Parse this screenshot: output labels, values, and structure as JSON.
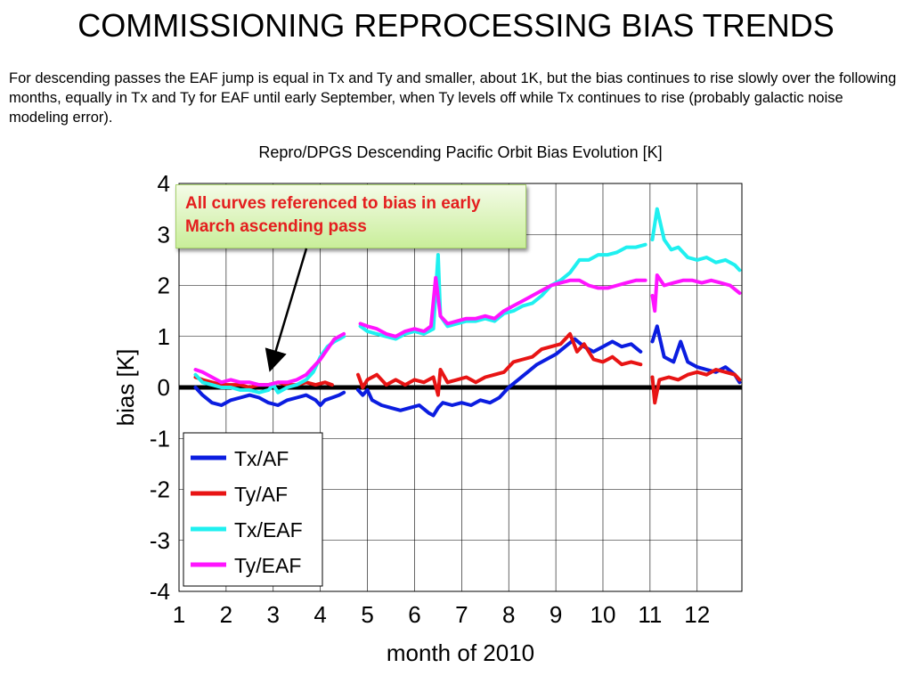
{
  "slide": {
    "title": "COMMISSIONING REPROCESSING BIAS TRENDS",
    "description": "For descending passes the EAF jump is equal in Tx and Ty and smaller, about 1K, but the bias continues to rise slowly over the following months, equally in Tx and Ty for EAF until early September, when Ty levels off while Tx continues to rise (probably galactic noise modeling error).",
    "callout": "All curves referenced to bias in early March ascending pass"
  },
  "chart_data": {
    "type": "line",
    "title": "Repro/DPGS Descending Pacific Orbit Bias Evolution [K]",
    "xlabel": "month of 2010",
    "ylabel": "bias [K]",
    "xlim": [
      1,
      12.95
    ],
    "ylim": [
      -4,
      4
    ],
    "xticks": [
      1,
      2,
      3,
      4,
      5,
      6,
      7,
      8,
      9,
      10,
      11,
      12
    ],
    "yticks": [
      -4,
      -3,
      -2,
      -1,
      0,
      1,
      2,
      3,
      4
    ],
    "grid": true,
    "legend_position": "bottom-left",
    "reference_line": {
      "y": 0,
      "color": "#000000"
    },
    "series": [
      {
        "name": "Tx/AF",
        "color": "#0b1de0",
        "segments": [
          [
            [
              1.35,
              0.0
            ],
            [
              1.5,
              -0.15
            ],
            [
              1.7,
              -0.3
            ],
            [
              1.9,
              -0.35
            ],
            [
              2.1,
              -0.25
            ],
            [
              2.3,
              -0.2
            ],
            [
              2.5,
              -0.15
            ],
            [
              2.7,
              -0.2
            ],
            [
              2.9,
              -0.3
            ],
            [
              3.1,
              -0.35
            ],
            [
              3.3,
              -0.25
            ],
            [
              3.5,
              -0.2
            ],
            [
              3.7,
              -0.15
            ],
            [
              3.9,
              -0.25
            ],
            [
              4.0,
              -0.35
            ],
            [
              4.1,
              -0.25
            ],
            [
              4.25,
              -0.2
            ],
            [
              4.4,
              -0.15
            ],
            [
              4.5,
              -0.1
            ]
          ],
          [
            [
              4.8,
              -0.05
            ],
            [
              4.9,
              -0.15
            ],
            [
              5.0,
              -0.05
            ],
            [
              5.1,
              -0.25
            ],
            [
              5.3,
              -0.35
            ],
            [
              5.5,
              -0.4
            ],
            [
              5.7,
              -0.45
            ],
            [
              5.9,
              -0.4
            ],
            [
              6.1,
              -0.35
            ],
            [
              6.3,
              -0.5
            ],
            [
              6.4,
              -0.55
            ],
            [
              6.5,
              -0.4
            ],
            [
              6.6,
              -0.3
            ],
            [
              6.8,
              -0.35
            ],
            [
              7.0,
              -0.3
            ],
            [
              7.2,
              -0.35
            ],
            [
              7.4,
              -0.25
            ],
            [
              7.6,
              -0.3
            ],
            [
              7.8,
              -0.2
            ],
            [
              8.0,
              0.0
            ],
            [
              8.2,
              0.15
            ],
            [
              8.4,
              0.3
            ],
            [
              8.6,
              0.45
            ],
            [
              8.8,
              0.55
            ],
            [
              9.0,
              0.65
            ],
            [
              9.2,
              0.8
            ],
            [
              9.4,
              0.95
            ],
            [
              9.6,
              0.8
            ],
            [
              9.8,
              0.7
            ],
            [
              10.0,
              0.8
            ],
            [
              10.2,
              0.9
            ],
            [
              10.4,
              0.8
            ],
            [
              10.6,
              0.85
            ],
            [
              10.8,
              0.7
            ]
          ],
          [
            [
              11.05,
              0.9
            ],
            [
              11.15,
              1.2
            ],
            [
              11.3,
              0.6
            ],
            [
              11.5,
              0.5
            ],
            [
              11.65,
              0.9
            ],
            [
              11.8,
              0.5
            ],
            [
              12.0,
              0.4
            ],
            [
              12.2,
              0.35
            ],
            [
              12.4,
              0.3
            ],
            [
              12.6,
              0.4
            ],
            [
              12.8,
              0.25
            ],
            [
              12.9,
              0.1
            ]
          ]
        ]
      },
      {
        "name": "Ty/AF",
        "color": "#e81414",
        "segments": [
          [
            [
              1.35,
              0.2
            ],
            [
              1.5,
              0.15
            ],
            [
              1.7,
              0.1
            ],
            [
              1.9,
              0.05
            ],
            [
              2.1,
              0.05
            ],
            [
              2.3,
              0.05
            ],
            [
              2.5,
              0.0
            ],
            [
              2.7,
              0.05
            ],
            [
              2.9,
              0.05
            ],
            [
              3.1,
              0.1
            ],
            [
              3.3,
              0.05
            ],
            [
              3.5,
              0.05
            ],
            [
              3.7,
              0.1
            ],
            [
              3.9,
              0.05
            ],
            [
              4.1,
              0.1
            ],
            [
              4.25,
              0.05
            ]
          ],
          [
            [
              4.8,
              0.25
            ],
            [
              4.9,
              0.0
            ],
            [
              5.0,
              0.15
            ],
            [
              5.2,
              0.25
            ],
            [
              5.4,
              0.05
            ],
            [
              5.6,
              0.15
            ],
            [
              5.8,
              0.05
            ],
            [
              6.0,
              0.15
            ],
            [
              6.2,
              0.1
            ],
            [
              6.4,
              0.2
            ],
            [
              6.5,
              -0.15
            ],
            [
              6.55,
              0.35
            ],
            [
              6.7,
              0.1
            ],
            [
              6.9,
              0.15
            ],
            [
              7.1,
              0.2
            ],
            [
              7.3,
              0.1
            ],
            [
              7.5,
              0.2
            ],
            [
              7.7,
              0.25
            ],
            [
              7.9,
              0.3
            ],
            [
              8.1,
              0.5
            ],
            [
              8.3,
              0.55
            ],
            [
              8.5,
              0.6
            ],
            [
              8.7,
              0.75
            ],
            [
              8.9,
              0.8
            ],
            [
              9.1,
              0.85
            ],
            [
              9.3,
              1.05
            ],
            [
              9.45,
              0.7
            ],
            [
              9.6,
              0.85
            ],
            [
              9.8,
              0.55
            ],
            [
              10.0,
              0.5
            ],
            [
              10.2,
              0.6
            ],
            [
              10.4,
              0.45
            ],
            [
              10.6,
              0.5
            ],
            [
              10.8,
              0.45
            ]
          ],
          [
            [
              11.05,
              0.2
            ],
            [
              11.1,
              -0.3
            ],
            [
              11.2,
              0.15
            ],
            [
              11.4,
              0.2
            ],
            [
              11.6,
              0.15
            ],
            [
              11.8,
              0.25
            ],
            [
              12.0,
              0.3
            ],
            [
              12.2,
              0.25
            ],
            [
              12.4,
              0.35
            ],
            [
              12.6,
              0.3
            ],
            [
              12.8,
              0.25
            ],
            [
              12.9,
              0.15
            ]
          ]
        ]
      },
      {
        "name": "Tx/EAF",
        "color": "#1ff0f0",
        "segments": [
          [
            [
              1.35,
              0.25
            ],
            [
              1.5,
              0.1
            ],
            [
              1.7,
              0.05
            ],
            [
              1.9,
              0.0
            ],
            [
              2.1,
              0.0
            ],
            [
              2.3,
              -0.05
            ],
            [
              2.5,
              -0.05
            ],
            [
              2.7,
              -0.1
            ],
            [
              2.9,
              -0.05
            ],
            [
              3.0,
              0.05
            ],
            [
              3.1,
              -0.1
            ],
            [
              3.3,
              0.0
            ],
            [
              3.5,
              0.05
            ],
            [
              3.7,
              0.15
            ],
            [
              3.85,
              0.3
            ],
            [
              4.0,
              0.6
            ],
            [
              4.15,
              0.8
            ],
            [
              4.3,
              0.9
            ],
            [
              4.5,
              1.0
            ]
          ],
          [
            [
              4.85,
              1.2
            ],
            [
              5.0,
              1.1
            ],
            [
              5.2,
              1.05
            ],
            [
              5.4,
              1.0
            ],
            [
              5.6,
              0.95
            ],
            [
              5.8,
              1.05
            ],
            [
              6.0,
              1.1
            ],
            [
              6.2,
              1.05
            ],
            [
              6.4,
              1.15
            ],
            [
              6.5,
              2.6
            ],
            [
              6.55,
              1.4
            ],
            [
              6.7,
              1.2
            ],
            [
              6.9,
              1.25
            ],
            [
              7.1,
              1.3
            ],
            [
              7.3,
              1.3
            ],
            [
              7.5,
              1.35
            ],
            [
              7.7,
              1.3
            ],
            [
              7.9,
              1.45
            ],
            [
              8.1,
              1.5
            ],
            [
              8.3,
              1.6
            ],
            [
              8.5,
              1.65
            ],
            [
              8.7,
              1.8
            ],
            [
              8.9,
              2.0
            ],
            [
              9.1,
              2.1
            ],
            [
              9.3,
              2.25
            ],
            [
              9.5,
              2.5
            ],
            [
              9.7,
              2.5
            ],
            [
              9.9,
              2.6
            ],
            [
              10.1,
              2.6
            ],
            [
              10.3,
              2.65
            ],
            [
              10.5,
              2.75
            ],
            [
              10.7,
              2.75
            ],
            [
              10.9,
              2.8
            ]
          ],
          [
            [
              11.05,
              2.9
            ],
            [
              11.15,
              3.5
            ],
            [
              11.3,
              2.9
            ],
            [
              11.45,
              2.7
            ],
            [
              11.6,
              2.75
            ],
            [
              11.8,
              2.55
            ],
            [
              12.0,
              2.5
            ],
            [
              12.2,
              2.55
            ],
            [
              12.4,
              2.45
            ],
            [
              12.6,
              2.5
            ],
            [
              12.8,
              2.4
            ],
            [
              12.9,
              2.3
            ]
          ]
        ]
      },
      {
        "name": "Ty/EAF",
        "color": "#ff14ff",
        "segments": [
          [
            [
              1.35,
              0.35
            ],
            [
              1.5,
              0.3
            ],
            [
              1.7,
              0.2
            ],
            [
              1.9,
              0.1
            ],
            [
              2.1,
              0.15
            ],
            [
              2.3,
              0.1
            ],
            [
              2.5,
              0.1
            ],
            [
              2.7,
              0.05
            ],
            [
              2.9,
              0.05
            ],
            [
              3.1,
              0.1
            ],
            [
              3.3,
              0.1
            ],
            [
              3.5,
              0.15
            ],
            [
              3.7,
              0.25
            ],
            [
              3.85,
              0.4
            ],
            [
              4.0,
              0.55
            ],
            [
              4.15,
              0.75
            ],
            [
              4.3,
              0.95
            ],
            [
              4.5,
              1.05
            ]
          ],
          [
            [
              4.85,
              1.25
            ],
            [
              5.0,
              1.2
            ],
            [
              5.2,
              1.15
            ],
            [
              5.4,
              1.05
            ],
            [
              5.6,
              1.0
            ],
            [
              5.8,
              1.1
            ],
            [
              6.0,
              1.15
            ],
            [
              6.2,
              1.1
            ],
            [
              6.35,
              1.2
            ],
            [
              6.45,
              2.15
            ],
            [
              6.55,
              1.4
            ],
            [
              6.7,
              1.25
            ],
            [
              6.9,
              1.3
            ],
            [
              7.1,
              1.35
            ],
            [
              7.3,
              1.35
            ],
            [
              7.5,
              1.4
            ],
            [
              7.7,
              1.35
            ],
            [
              7.9,
              1.5
            ],
            [
              8.1,
              1.6
            ],
            [
              8.3,
              1.7
            ],
            [
              8.5,
              1.8
            ],
            [
              8.7,
              1.9
            ],
            [
              8.9,
              2.0
            ],
            [
              9.1,
              2.05
            ],
            [
              9.3,
              2.1
            ],
            [
              9.5,
              2.1
            ],
            [
              9.7,
              2.0
            ],
            [
              9.9,
              1.95
            ],
            [
              10.1,
              1.95
            ],
            [
              10.3,
              2.0
            ],
            [
              10.5,
              2.05
            ],
            [
              10.7,
              2.1
            ],
            [
              10.9,
              2.1
            ]
          ],
          [
            [
              11.05,
              1.8
            ],
            [
              11.1,
              1.5
            ],
            [
              11.15,
              2.2
            ],
            [
              11.3,
              2.0
            ],
            [
              11.5,
              2.05
            ],
            [
              11.7,
              2.1
            ],
            [
              11.9,
              2.1
            ],
            [
              12.1,
              2.05
            ],
            [
              12.3,
              2.1
            ],
            [
              12.5,
              2.05
            ],
            [
              12.7,
              2.0
            ],
            [
              12.9,
              1.85
            ]
          ]
        ]
      }
    ]
  }
}
